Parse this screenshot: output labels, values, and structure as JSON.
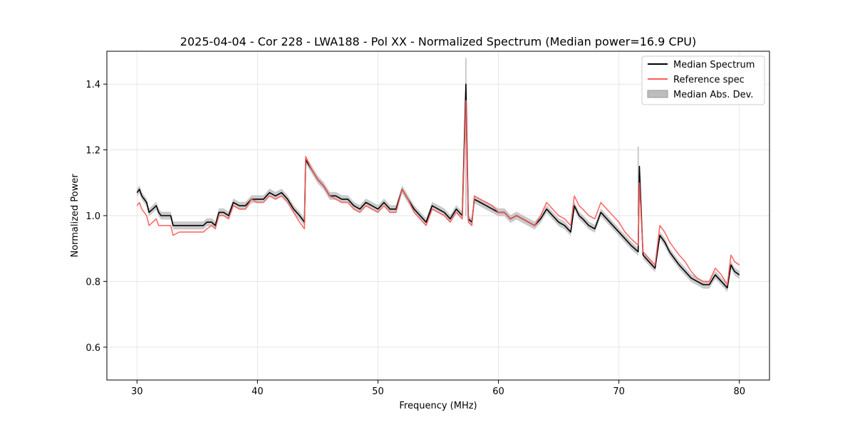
{
  "chart_data": {
    "type": "line",
    "title": "2025-04-04 - Cor 228 - LWA188 - Pol XX - Normalized Spectrum (Median power=16.9 CPU)",
    "xlabel": "Frequency (MHz)",
    "ylabel": "Normalized Power",
    "xlim": [
      27.5,
      82.5
    ],
    "ylim": [
      0.5,
      1.5
    ],
    "xticks": [
      30,
      40,
      50,
      60,
      70,
      80
    ],
    "yticks": [
      0.6,
      0.8,
      1.0,
      1.2,
      1.4
    ],
    "xtick_labels": [
      "30",
      "40",
      "50",
      "60",
      "70",
      "80"
    ],
    "ytick_labels": [
      "0.6",
      "0.8",
      "1.0",
      "1.2",
      "1.4"
    ],
    "grid": true,
    "legend_position": "top-right",
    "legend": [
      "Median Spectrum",
      "Reference spec",
      "Median Abs. Dev."
    ],
    "colors": {
      "median": "#000000",
      "reference": "#ff5a5a",
      "mad": "#bdbdbd"
    },
    "series": [
      {
        "name": "Median Spectrum",
        "x": [
          30.0,
          30.2,
          30.4,
          30.6,
          30.8,
          31.0,
          31.3,
          31.6,
          31.8,
          32.0,
          32.4,
          32.8,
          33.0,
          33.5,
          34.0,
          34.5,
          35.0,
          35.5,
          35.8,
          36.2,
          36.5,
          36.8,
          37.2,
          37.6,
          38.0,
          38.5,
          39.0,
          39.5,
          40.0,
          40.5,
          41.0,
          41.5,
          42.0,
          42.5,
          43.0,
          43.5,
          43.9,
          44.0,
          44.5,
          45.0,
          45.5,
          46.0,
          46.5,
          47.0,
          47.5,
          48.0,
          48.5,
          49.0,
          49.5,
          50.0,
          50.5,
          51.0,
          51.5,
          52.0,
          52.5,
          53.0,
          53.5,
          54.0,
          54.5,
          55.0,
          55.5,
          56.0,
          56.5,
          57.0,
          57.3,
          57.5,
          57.8,
          58.0,
          58.5,
          59.0,
          59.5,
          60.0,
          60.5,
          61.0,
          61.5,
          62.0,
          62.5,
          63.0,
          63.5,
          64.0,
          64.5,
          65.0,
          65.5,
          66.0,
          66.3,
          66.7,
          67.0,
          67.5,
          68.0,
          68.5,
          69.0,
          69.5,
          70.0,
          70.5,
          71.0,
          71.6,
          71.7,
          72.0,
          72.5,
          73.0,
          73.4,
          73.8,
          74.2,
          74.6,
          75.0,
          75.5,
          76.0,
          76.5,
          77.0,
          77.5,
          78.0,
          78.5,
          79.0,
          79.3,
          79.6,
          80.0
        ],
        "values": [
          1.07,
          1.08,
          1.06,
          1.05,
          1.04,
          1.01,
          1.02,
          1.03,
          1.01,
          1.0,
          1.0,
          1.0,
          0.97,
          0.97,
          0.97,
          0.97,
          0.97,
          0.97,
          0.98,
          0.98,
          0.97,
          1.01,
          1.01,
          1.0,
          1.04,
          1.03,
          1.03,
          1.05,
          1.05,
          1.05,
          1.07,
          1.06,
          1.07,
          1.05,
          1.02,
          1.0,
          0.98,
          1.17,
          1.14,
          1.11,
          1.09,
          1.06,
          1.06,
          1.05,
          1.05,
          1.03,
          1.02,
          1.04,
          1.03,
          1.02,
          1.04,
          1.02,
          1.02,
          1.08,
          1.05,
          1.02,
          1.0,
          0.98,
          1.03,
          1.02,
          1.01,
          0.99,
          1.02,
          1.0,
          1.4,
          0.99,
          0.98,
          1.05,
          1.04,
          1.03,
          1.02,
          1.01,
          1.01,
          0.99,
          1.0,
          0.99,
          0.98,
          0.97,
          0.99,
          1.02,
          1.0,
          0.98,
          0.97,
          0.95,
          1.03,
          1.0,
          0.99,
          0.97,
          0.96,
          1.01,
          0.99,
          0.97,
          0.95,
          0.93,
          0.91,
          0.89,
          1.15,
          0.88,
          0.86,
          0.84,
          0.94,
          0.92,
          0.89,
          0.87,
          0.85,
          0.83,
          0.81,
          0.8,
          0.79,
          0.79,
          0.82,
          0.8,
          0.78,
          0.85,
          0.83,
          0.82
        ]
      },
      {
        "name": "Reference spec",
        "x": [
          30.0,
          30.2,
          30.4,
          30.6,
          30.8,
          31.0,
          31.3,
          31.6,
          31.8,
          32.0,
          32.4,
          32.8,
          33.0,
          33.5,
          34.0,
          34.5,
          35.0,
          35.5,
          35.8,
          36.2,
          36.5,
          36.8,
          37.2,
          37.6,
          38.0,
          38.5,
          39.0,
          39.5,
          40.0,
          40.5,
          41.0,
          41.5,
          42.0,
          42.5,
          43.0,
          43.5,
          43.9,
          44.0,
          44.5,
          45.0,
          45.5,
          46.0,
          46.5,
          47.0,
          47.5,
          48.0,
          48.5,
          49.0,
          49.5,
          50.0,
          50.5,
          51.0,
          51.5,
          52.0,
          52.5,
          53.0,
          53.5,
          54.0,
          54.5,
          55.0,
          55.5,
          56.0,
          56.5,
          57.0,
          57.3,
          57.5,
          57.8,
          58.0,
          58.5,
          59.0,
          59.5,
          60.0,
          60.5,
          61.0,
          61.5,
          62.0,
          62.5,
          63.0,
          63.5,
          64.0,
          64.5,
          65.0,
          65.5,
          66.0,
          66.3,
          66.7,
          67.0,
          67.5,
          68.0,
          68.5,
          69.0,
          69.5,
          70.0,
          70.5,
          71.0,
          71.6,
          71.7,
          72.0,
          72.5,
          73.0,
          73.4,
          73.8,
          74.2,
          74.6,
          75.0,
          75.5,
          76.0,
          76.5,
          77.0,
          77.5,
          78.0,
          78.5,
          79.0,
          79.3,
          79.6,
          80.0
        ],
        "values": [
          1.03,
          1.04,
          1.02,
          1.01,
          1.0,
          0.97,
          0.98,
          0.99,
          0.97,
          0.97,
          0.97,
          0.97,
          0.94,
          0.95,
          0.95,
          0.95,
          0.95,
          0.95,
          0.96,
          0.97,
          0.96,
          1.0,
          1.0,
          0.99,
          1.03,
          1.02,
          1.02,
          1.05,
          1.04,
          1.04,
          1.06,
          1.05,
          1.06,
          1.04,
          1.01,
          0.98,
          0.96,
          1.18,
          1.14,
          1.11,
          1.09,
          1.06,
          1.05,
          1.04,
          1.04,
          1.02,
          1.01,
          1.03,
          1.02,
          1.01,
          1.03,
          1.01,
          1.01,
          1.08,
          1.05,
          1.01,
          0.99,
          0.97,
          1.02,
          1.01,
          1.0,
          0.98,
          1.01,
          0.99,
          1.35,
          0.98,
          0.97,
          1.06,
          1.05,
          1.04,
          1.03,
          1.01,
          1.01,
          0.99,
          1.0,
          0.99,
          0.98,
          0.97,
          1.0,
          1.04,
          1.02,
          1.0,
          0.99,
          0.97,
          1.06,
          1.03,
          1.02,
          1.0,
          0.99,
          1.04,
          1.02,
          1.0,
          0.98,
          0.95,
          0.93,
          0.91,
          1.1,
          0.89,
          0.87,
          0.85,
          0.97,
          0.95,
          0.92,
          0.9,
          0.88,
          0.86,
          0.83,
          0.81,
          0.8,
          0.8,
          0.84,
          0.82,
          0.79,
          0.88,
          0.86,
          0.85
        ]
      }
    ],
    "mad_band": {
      "name": "Median Abs. Dev.",
      "half_width": 0.012,
      "spike_x": [
        57.3,
        71.6
      ],
      "spike_top": [
        1.48,
        1.21
      ]
    }
  }
}
